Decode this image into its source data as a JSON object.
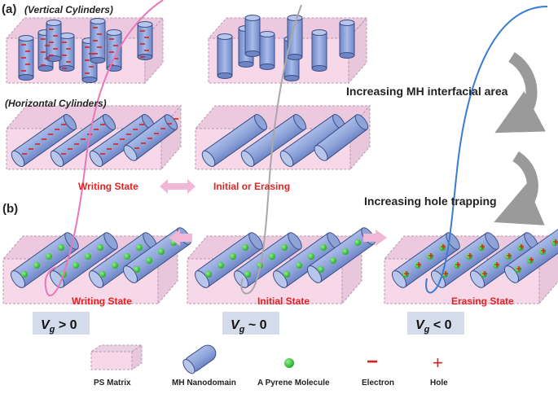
{
  "panel_a": {
    "label": "(a)",
    "vertical_title": "(Vertical Cylinders)",
    "horizontal_title": "(Horizontal Cylinders)",
    "writing_state": "Writing State",
    "initial_or_erasing": "Initial or Erasing"
  },
  "panel_b": {
    "label": "(b)",
    "writing_state": "Writing State",
    "initial_state": "Initial State",
    "erasing_state": "Erasing State"
  },
  "annotations": {
    "interfacial_area": "Increasing MH interfacial area",
    "hole_trapping": "Increasing hole trapping"
  },
  "voltage": {
    "writing": {
      "v": "V",
      "sub": "g",
      "rest": " > 0"
    },
    "initial": {
      "v": "V",
      "sub": "g",
      "rest": " ~ 0"
    },
    "erasing": {
      "v": "V",
      "sub": "g",
      "rest": " < 0"
    }
  },
  "legend": {
    "ps_matrix": "PS Matrix",
    "mh_nanodomain": "MH Nanodomain",
    "pyrene": "A Pyrene Molecule",
    "electron": "Electron",
    "hole": "Hole",
    "electron_symbol": "−",
    "hole_symbol": "+"
  },
  "colors": {
    "slab_fill": "#f6d8e8",
    "cylinder_fill": "#8ea3d8",
    "pink_curve": "#e879b8",
    "gray_curve": "#a8a8a8",
    "blue_curve": "#3a7cd0",
    "state_text": "#e02424",
    "pyrene": "#3ec63e",
    "hole": "#d92020",
    "electron": "#d92020"
  }
}
